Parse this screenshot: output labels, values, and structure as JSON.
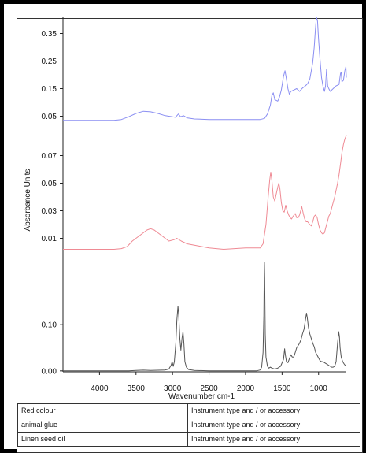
{
  "chart_data": {
    "type": "line",
    "xlabel": "Wavenumber cm-1",
    "ylabel": "Absorbance Units",
    "x_reversed": true,
    "xlim": [
      4500,
      620
    ],
    "x_ticks": [
      "4000",
      "3500",
      "3000",
      "2500",
      "2000",
      "1500",
      "1000"
    ],
    "x_tick_values": [
      4000,
      3500,
      3000,
      2500,
      2000,
      1500,
      1000
    ],
    "panels": [
      {
        "name": "Red colour",
        "color": "#8a8ef2",
        "ylim": [
          0.0,
          0.4
        ],
        "y_ticks": [
          "0.35",
          "0.25",
          "0.15",
          "0.05"
        ],
        "y_tick_values": [
          0.35,
          0.25,
          0.15,
          0.05
        ],
        "points": [
          [
            4500,
            0.035
          ],
          [
            3800,
            0.035
          ],
          [
            3700,
            0.038
          ],
          [
            3600,
            0.048
          ],
          [
            3500,
            0.06
          ],
          [
            3400,
            0.068
          ],
          [
            3300,
            0.066
          ],
          [
            3200,
            0.06
          ],
          [
            3100,
            0.052
          ],
          [
            3000,
            0.048
          ],
          [
            2960,
            0.046
          ],
          [
            2920,
            0.058
          ],
          [
            2890,
            0.048
          ],
          [
            2850,
            0.052
          ],
          [
            2800,
            0.044
          ],
          [
            2700,
            0.04
          ],
          [
            2500,
            0.038
          ],
          [
            2200,
            0.038
          ],
          [
            2000,
            0.038
          ],
          [
            1800,
            0.038
          ],
          [
            1740,
            0.042
          ],
          [
            1700,
            0.058
          ],
          [
            1660,
            0.09
          ],
          [
            1640,
            0.125
          ],
          [
            1620,
            0.135
          ],
          [
            1600,
            0.11
          ],
          [
            1560,
            0.105
          ],
          [
            1540,
            0.115
          ],
          [
            1510,
            0.145
          ],
          [
            1480,
            0.195
          ],
          [
            1460,
            0.215
          ],
          [
            1440,
            0.185
          ],
          [
            1420,
            0.15
          ],
          [
            1400,
            0.13
          ],
          [
            1380,
            0.14
          ],
          [
            1340,
            0.145
          ],
          [
            1300,
            0.15
          ],
          [
            1260,
            0.14
          ],
          [
            1220,
            0.152
          ],
          [
            1180,
            0.16
          ],
          [
            1150,
            0.168
          ],
          [
            1120,
            0.185
          ],
          [
            1100,
            0.215
          ],
          [
            1080,
            0.245
          ],
          [
            1060,
            0.3
          ],
          [
            1045,
            0.36
          ],
          [
            1030,
            0.41
          ],
          [
            1015,
            0.395
          ],
          [
            1000,
            0.33
          ],
          [
            980,
            0.255
          ],
          [
            960,
            0.19
          ],
          [
            940,
            0.16
          ],
          [
            920,
            0.14
          ],
          [
            905,
            0.16
          ],
          [
            890,
            0.22
          ],
          [
            875,
            0.16
          ],
          [
            860,
            0.15
          ],
          [
            840,
            0.14
          ],
          [
            800,
            0.15
          ],
          [
            760,
            0.16
          ],
          [
            720,
            0.165
          ],
          [
            700,
            0.205
          ],
          [
            690,
            0.21
          ],
          [
            680,
            0.175
          ],
          [
            660,
            0.18
          ],
          [
            640,
            0.215
          ],
          [
            625,
            0.23
          ],
          [
            620,
            0.19
          ]
        ]
      },
      {
        "name": "animal glue",
        "color": "#ef8a94",
        "ylim": [
          0.0,
          0.08
        ],
        "y_ticks": [
          "0.07",
          "0.05",
          "0.03",
          "0.01"
        ],
        "y_tick_values": [
          0.07,
          0.05,
          0.03,
          0.01
        ],
        "points": [
          [
            4500,
            0.002
          ],
          [
            3800,
            0.002
          ],
          [
            3700,
            0.0025
          ],
          [
            3620,
            0.004
          ],
          [
            3550,
            0.008
          ],
          [
            3450,
            0.012
          ],
          [
            3350,
            0.016
          ],
          [
            3300,
            0.017
          ],
          [
            3250,
            0.016
          ],
          [
            3200,
            0.014
          ],
          [
            3100,
            0.01
          ],
          [
            3050,
            0.008
          ],
          [
            2980,
            0.009
          ],
          [
            2940,
            0.01
          ],
          [
            2880,
            0.008
          ],
          [
            2800,
            0.006
          ],
          [
            2700,
            0.005
          ],
          [
            2600,
            0.004
          ],
          [
            2500,
            0.003
          ],
          [
            2300,
            0.002
          ],
          [
            2150,
            0.0025
          ],
          [
            2000,
            0.003
          ],
          [
            1900,
            0.003
          ],
          [
            1800,
            0.003
          ],
          [
            1760,
            0.006
          ],
          [
            1720,
            0.02
          ],
          [
            1690,
            0.04
          ],
          [
            1670,
            0.052
          ],
          [
            1655,
            0.058
          ],
          [
            1640,
            0.052
          ],
          [
            1620,
            0.04
          ],
          [
            1600,
            0.037
          ],
          [
            1580,
            0.042
          ],
          [
            1560,
            0.047
          ],
          [
            1545,
            0.05
          ],
          [
            1530,
            0.046
          ],
          [
            1510,
            0.036
          ],
          [
            1490,
            0.03
          ],
          [
            1470,
            0.029
          ],
          [
            1450,
            0.034
          ],
          [
            1430,
            0.03
          ],
          [
            1410,
            0.027
          ],
          [
            1390,
            0.025
          ],
          [
            1370,
            0.024
          ],
          [
            1350,
            0.026
          ],
          [
            1320,
            0.028
          ],
          [
            1300,
            0.025
          ],
          [
            1280,
            0.025
          ],
          [
            1260,
            0.027
          ],
          [
            1240,
            0.031
          ],
          [
            1230,
            0.033
          ],
          [
            1210,
            0.028
          ],
          [
            1190,
            0.024
          ],
          [
            1170,
            0.022
          ],
          [
            1150,
            0.022
          ],
          [
            1120,
            0.02
          ],
          [
            1100,
            0.019
          ],
          [
            1080,
            0.022
          ],
          [
            1060,
            0.026
          ],
          [
            1040,
            0.027
          ],
          [
            1020,
            0.025
          ],
          [
            1000,
            0.02
          ],
          [
            980,
            0.016
          ],
          [
            960,
            0.014
          ],
          [
            940,
            0.013
          ],
          [
            920,
            0.014
          ],
          [
            900,
            0.018
          ],
          [
            880,
            0.022
          ],
          [
            860,
            0.026
          ],
          [
            840,
            0.028
          ],
          [
            820,
            0.032
          ],
          [
            800,
            0.036
          ],
          [
            780,
            0.04
          ],
          [
            760,
            0.045
          ],
          [
            740,
            0.05
          ],
          [
            720,
            0.056
          ],
          [
            700,
            0.064
          ],
          [
            680,
            0.072
          ],
          [
            660,
            0.078
          ],
          [
            640,
            0.082
          ],
          [
            625,
            0.084
          ],
          [
            620,
            0.085
          ]
        ]
      },
      {
        "name": "Linen seed oil",
        "color": "#555555",
        "ylim": [
          -0.002,
          0.235
        ],
        "y_ticks": [
          "0.10",
          "0.00"
        ],
        "y_tick_values": [
          0.1,
          0.0
        ],
        "points": [
          [
            4500,
            0.0
          ],
          [
            3600,
            0.0
          ],
          [
            3500,
            0.001
          ],
          [
            3400,
            0.0015
          ],
          [
            3300,
            0.001
          ],
          [
            3100,
            0.002
          ],
          [
            3050,
            0.004
          ],
          [
            3020,
            0.012
          ],
          [
            3005,
            0.02
          ],
          [
            2990,
            0.01
          ],
          [
            2975,
            0.02
          ],
          [
            2955,
            0.06
          ],
          [
            2940,
            0.11
          ],
          [
            2925,
            0.14
          ],
          [
            2915,
            0.12
          ],
          [
            2900,
            0.07
          ],
          [
            2885,
            0.045
          ],
          [
            2870,
            0.07
          ],
          [
            2856,
            0.085
          ],
          [
            2845,
            0.06
          ],
          [
            2830,
            0.02
          ],
          [
            2810,
            0.008
          ],
          [
            2780,
            0.003
          ],
          [
            2700,
            0.001
          ],
          [
            2500,
            0.0
          ],
          [
            2200,
            0.0
          ],
          [
            2000,
            0.0
          ],
          [
            1850,
            0.0
          ],
          [
            1800,
            0.002
          ],
          [
            1780,
            0.008
          ],
          [
            1760,
            0.04
          ],
          [
            1750,
            0.12
          ],
          [
            1745,
            0.2
          ],
          [
            1742,
            0.235
          ],
          [
            1738,
            0.2
          ],
          [
            1730,
            0.08
          ],
          [
            1720,
            0.03
          ],
          [
            1700,
            0.01
          ],
          [
            1680,
            0.006
          ],
          [
            1660,
            0.008
          ],
          [
            1640,
            0.006
          ],
          [
            1600,
            0.004
          ],
          [
            1560,
            0.006
          ],
          [
            1520,
            0.01
          ],
          [
            1480,
            0.025
          ],
          [
            1465,
            0.048
          ],
          [
            1455,
            0.035
          ],
          [
            1440,
            0.02
          ],
          [
            1420,
            0.018
          ],
          [
            1400,
            0.026
          ],
          [
            1380,
            0.035
          ],
          [
            1360,
            0.03
          ],
          [
            1340,
            0.03
          ],
          [
            1320,
            0.04
          ],
          [
            1300,
            0.05
          ],
          [
            1280,
            0.055
          ],
          [
            1260,
            0.06
          ],
          [
            1240,
            0.068
          ],
          [
            1220,
            0.08
          ],
          [
            1200,
            0.09
          ],
          [
            1180,
            0.11
          ],
          [
            1165,
            0.125
          ],
          [
            1155,
            0.115
          ],
          [
            1140,
            0.095
          ],
          [
            1120,
            0.08
          ],
          [
            1100,
            0.07
          ],
          [
            1080,
            0.06
          ],
          [
            1060,
            0.052
          ],
          [
            1040,
            0.04
          ],
          [
            1020,
            0.034
          ],
          [
            1000,
            0.028
          ],
          [
            980,
            0.022
          ],
          [
            960,
            0.02
          ],
          [
            940,
            0.02
          ],
          [
            920,
            0.018
          ],
          [
            900,
            0.016
          ],
          [
            880,
            0.014
          ],
          [
            860,
            0.012
          ],
          [
            840,
            0.01
          ],
          [
            820,
            0.008
          ],
          [
            800,
            0.008
          ],
          [
            780,
            0.01
          ],
          [
            760,
            0.02
          ],
          [
            740,
            0.06
          ],
          [
            725,
            0.085
          ],
          [
            715,
            0.075
          ],
          [
            705,
            0.05
          ],
          [
            690,
            0.03
          ],
          [
            670,
            0.02
          ],
          [
            650,
            0.015
          ],
          [
            635,
            0.012
          ],
          [
            620,
            0.01
          ]
        ]
      }
    ]
  },
  "legend_rows": [
    {
      "name": "Red colour",
      "info": "Instrument type and / or accessory"
    },
    {
      "name": "animal glue",
      "info": "Instrument type and / or accessory"
    },
    {
      "name": "Linen seed oil",
      "info": "Instrument type and / or accessory"
    }
  ]
}
